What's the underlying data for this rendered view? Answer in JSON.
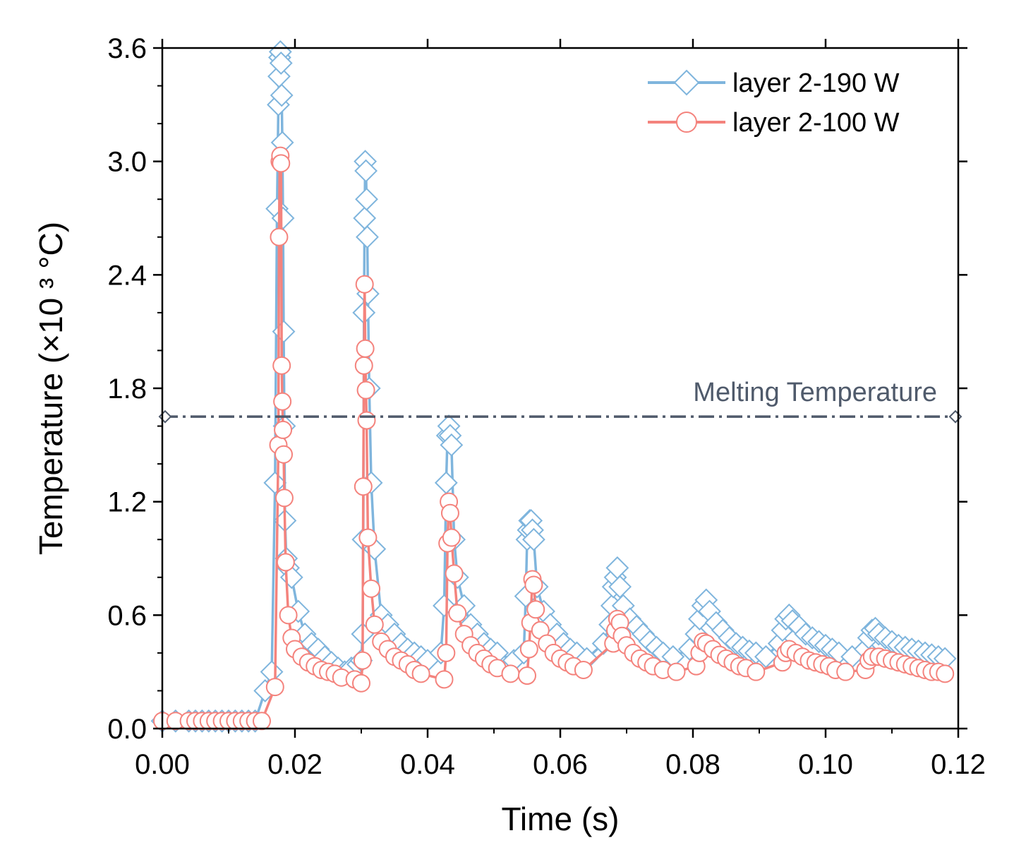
{
  "chart_data": {
    "type": "line",
    "xlabel": "Time (s)",
    "ylabel": "Temperature (×10 ³ °C)",
    "xlim": [
      0,
      0.12
    ],
    "ylim": [
      0,
      3.6
    ],
    "x_ticks": [
      "0.00",
      "0.02",
      "0.04",
      "0.06",
      "0.08",
      "0.10",
      "0.12"
    ],
    "y_ticks": [
      "0.0",
      "0.6",
      "1.2",
      "1.8",
      "2.4",
      "3.0",
      "3.6"
    ],
    "legend_position": "top-right",
    "grid": false,
    "reference_line": {
      "label": "Melting Temperature",
      "y": 1.65,
      "style": "dash-dot",
      "color": "#4f5a6b"
    },
    "series": [
      {
        "name": "layer 2-190 W",
        "marker": "diamond",
        "color": "#7fb5dd",
        "x": [
          0.0,
          0.002,
          0.004,
          0.005,
          0.006,
          0.007,
          0.008,
          0.009,
          0.01,
          0.011,
          0.012,
          0.013,
          0.014,
          0.0155,
          0.0165,
          0.017,
          0.0173,
          0.0175,
          0.0176,
          0.0177,
          0.0178,
          0.0179,
          0.018,
          0.0181,
          0.0182,
          0.0183,
          0.0184,
          0.0185,
          0.0187,
          0.019,
          0.0195,
          0.0205,
          0.0215,
          0.0225,
          0.0235,
          0.0245,
          0.0255,
          0.0265,
          0.0275,
          0.0285,
          0.0295,
          0.03,
          0.0302,
          0.0303,
          0.0304,
          0.0305,
          0.0306,
          0.0307,
          0.0308,
          0.0309,
          0.031,
          0.0312,
          0.0315,
          0.032,
          0.033,
          0.034,
          0.035,
          0.036,
          0.037,
          0.038,
          0.039,
          0.04,
          0.042,
          0.0425,
          0.0428,
          0.043,
          0.0432,
          0.0434,
          0.0436,
          0.044,
          0.0445,
          0.0455,
          0.0465,
          0.0475,
          0.0485,
          0.0495,
          0.0505,
          0.053,
          0.0545,
          0.0548,
          0.055,
          0.0552,
          0.0554,
          0.0556,
          0.0558,
          0.056,
          0.0565,
          0.0575,
          0.0585,
          0.0595,
          0.0605,
          0.0615,
          0.0625,
          0.064,
          0.0665,
          0.0675,
          0.0678,
          0.068,
          0.0683,
          0.0686,
          0.069,
          0.0695,
          0.0705,
          0.0715,
          0.0725,
          0.0735,
          0.0745,
          0.0755,
          0.077,
          0.0795,
          0.0805,
          0.081,
          0.0815,
          0.082,
          0.0825,
          0.0835,
          0.0845,
          0.0855,
          0.0865,
          0.0875,
          0.0885,
          0.0895,
          0.091,
          0.093,
          0.0935,
          0.094,
          0.0945,
          0.095,
          0.096,
          0.097,
          0.098,
          0.099,
          0.1,
          0.101,
          0.102,
          0.104,
          0.106,
          0.1065,
          0.107,
          0.1075,
          0.108,
          0.109,
          0.11,
          0.111,
          0.112,
          0.113,
          0.114,
          0.115,
          0.116,
          0.117,
          0.118
        ],
        "y": [
          0.04,
          0.04,
          0.04,
          0.04,
          0.04,
          0.04,
          0.04,
          0.04,
          0.04,
          0.04,
          0.04,
          0.04,
          0.04,
          0.2,
          0.3,
          1.3,
          2.75,
          3.3,
          3.45,
          3.55,
          3.58,
          3.52,
          3.35,
          3.1,
          2.7,
          2.1,
          1.6,
          1.1,
          0.9,
          0.85,
          0.8,
          0.62,
          0.5,
          0.45,
          0.42,
          0.38,
          0.35,
          0.32,
          0.3,
          0.32,
          0.34,
          0.36,
          0.5,
          1.0,
          2.2,
          2.7,
          3.0,
          2.95,
          2.8,
          2.6,
          2.3,
          1.8,
          1.3,
          0.95,
          0.6,
          0.55,
          0.5,
          0.45,
          0.42,
          0.4,
          0.38,
          0.36,
          0.4,
          0.65,
          1.3,
          1.55,
          1.6,
          1.55,
          1.5,
          1.0,
          0.8,
          0.65,
          0.55,
          0.5,
          0.45,
          0.42,
          0.4,
          0.36,
          0.4,
          0.7,
          1.0,
          1.05,
          1.1,
          1.1,
          1.05,
          1.0,
          0.75,
          0.62,
          0.55,
          0.5,
          0.45,
          0.42,
          0.4,
          0.37,
          0.45,
          0.55,
          0.65,
          0.75,
          0.8,
          0.85,
          0.75,
          0.65,
          0.58,
          0.54,
          0.5,
          0.46,
          0.43,
          0.4,
          0.38,
          0.42,
          0.5,
          0.58,
          0.65,
          0.68,
          0.62,
          0.56,
          0.52,
          0.48,
          0.45,
          0.43,
          0.41,
          0.4,
          0.38,
          0.45,
          0.52,
          0.58,
          0.6,
          0.57,
          0.54,
          0.5,
          0.48,
          0.46,
          0.44,
          0.42,
          0.4,
          0.38,
          0.42,
          0.48,
          0.52,
          0.53,
          0.5,
          0.48,
          0.46,
          0.44,
          0.43,
          0.42,
          0.41,
          0.4,
          0.39,
          0.38,
          0.37
        ]
      },
      {
        "name": "layer 2-100 W",
        "marker": "circle",
        "color": "#f4837d",
        "x": [
          0.0,
          0.002,
          0.004,
          0.005,
          0.006,
          0.007,
          0.008,
          0.009,
          0.01,
          0.011,
          0.012,
          0.013,
          0.014,
          0.015,
          0.017,
          0.0175,
          0.0176,
          0.0177,
          0.0178,
          0.0179,
          0.018,
          0.0181,
          0.0182,
          0.0183,
          0.0184,
          0.0186,
          0.019,
          0.0195,
          0.02,
          0.021,
          0.022,
          0.023,
          0.024,
          0.025,
          0.026,
          0.027,
          0.029,
          0.03,
          0.0302,
          0.0303,
          0.0304,
          0.0305,
          0.0306,
          0.0307,
          0.0308,
          0.031,
          0.0315,
          0.032,
          0.033,
          0.034,
          0.035,
          0.036,
          0.037,
          0.038,
          0.039,
          0.0425,
          0.0428,
          0.043,
          0.0432,
          0.0434,
          0.0436,
          0.044,
          0.0445,
          0.0455,
          0.0465,
          0.0475,
          0.0485,
          0.0495,
          0.0505,
          0.0525,
          0.055,
          0.0553,
          0.0555,
          0.0558,
          0.056,
          0.0563,
          0.057,
          0.058,
          0.059,
          0.06,
          0.061,
          0.062,
          0.0635,
          0.068,
          0.0683,
          0.0686,
          0.069,
          0.0693,
          0.07,
          0.071,
          0.072,
          0.073,
          0.074,
          0.0755,
          0.0775,
          0.0805,
          0.081,
          0.0815,
          0.082,
          0.083,
          0.084,
          0.085,
          0.086,
          0.087,
          0.088,
          0.0895,
          0.0935,
          0.094,
          0.0945,
          0.0955,
          0.0965,
          0.0975,
          0.0985,
          0.0995,
          0.1005,
          0.1015,
          0.103,
          0.106,
          0.1065,
          0.107,
          0.108,
          0.109,
          0.11,
          0.111,
          0.112,
          0.113,
          0.114,
          0.115,
          0.116,
          0.117,
          0.118
        ],
        "y": [
          0.04,
          0.04,
          0.04,
          0.04,
          0.04,
          0.04,
          0.04,
          0.04,
          0.04,
          0.04,
          0.04,
          0.04,
          0.04,
          0.04,
          0.22,
          1.5,
          2.6,
          3.0,
          3.03,
          2.99,
          1.92,
          1.73,
          1.58,
          1.45,
          1.22,
          0.88,
          0.6,
          0.48,
          0.42,
          0.38,
          0.35,
          0.33,
          0.31,
          0.3,
          0.29,
          0.27,
          0.26,
          0.24,
          0.36,
          1.28,
          1.92,
          2.35,
          2.01,
          1.79,
          1.63,
          1.01,
          0.74,
          0.55,
          0.46,
          0.42,
          0.38,
          0.36,
          0.34,
          0.31,
          0.29,
          0.26,
          0.4,
          0.98,
          1.2,
          1.14,
          1.01,
          0.82,
          0.61,
          0.5,
          0.44,
          0.4,
          0.37,
          0.34,
          0.32,
          0.29,
          0.28,
          0.42,
          0.56,
          0.79,
          0.76,
          0.63,
          0.52,
          0.45,
          0.4,
          0.37,
          0.35,
          0.33,
          0.31,
          0.45,
          0.52,
          0.58,
          0.56,
          0.49,
          0.44,
          0.4,
          0.37,
          0.35,
          0.33,
          0.31,
          0.3,
          0.33,
          0.4,
          0.46,
          0.45,
          0.42,
          0.39,
          0.37,
          0.35,
          0.33,
          0.32,
          0.3,
          0.35,
          0.4,
          0.42,
          0.4,
          0.38,
          0.36,
          0.35,
          0.34,
          0.33,
          0.31,
          0.3,
          0.31,
          0.36,
          0.38,
          0.38,
          0.37,
          0.36,
          0.35,
          0.34,
          0.33,
          0.32,
          0.31,
          0.3,
          0.3,
          0.29
        ]
      }
    ]
  }
}
